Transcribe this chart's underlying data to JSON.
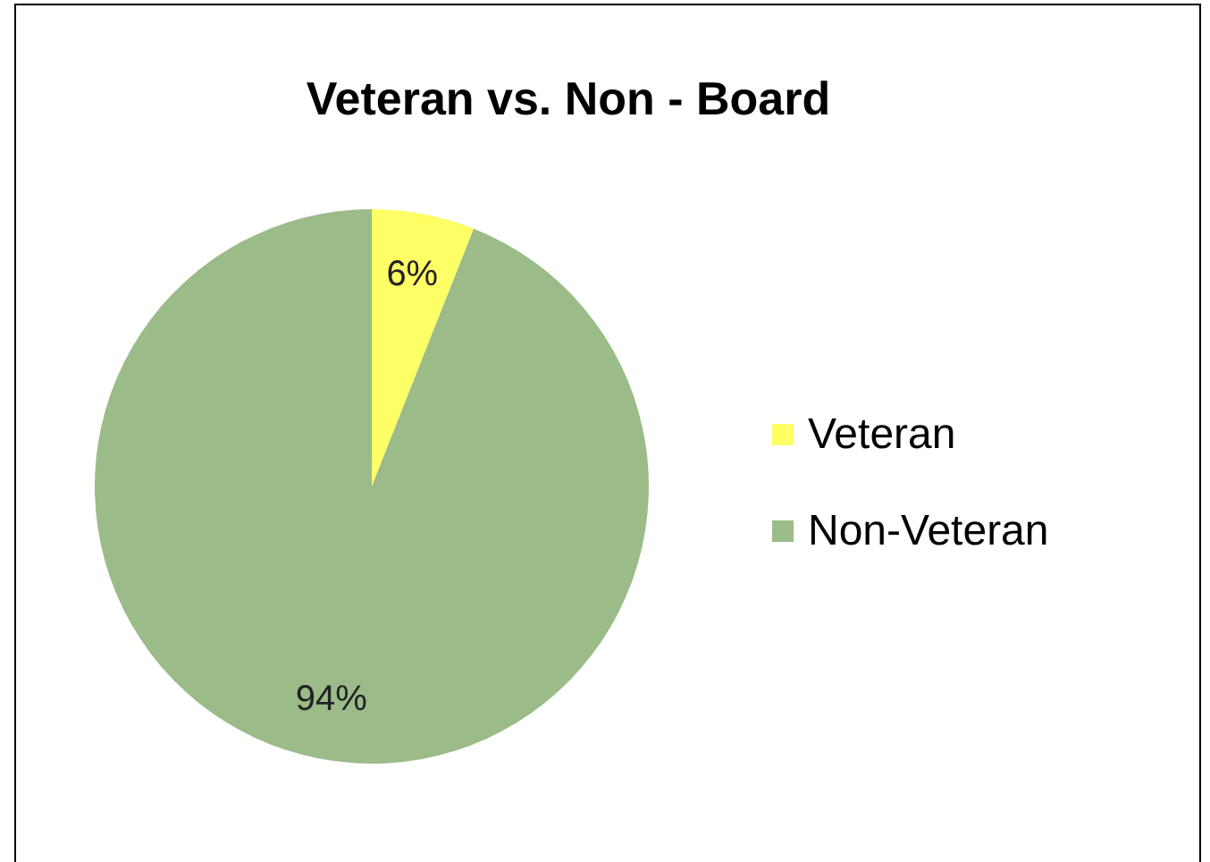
{
  "chart_data": {
    "type": "pie",
    "title": "Veteran vs. Non - Board",
    "categories": [
      "Veteran",
      "Non-Veteran"
    ],
    "values": [
      6,
      94
    ],
    "colors": [
      "#ffff66",
      "#9bbb89"
    ],
    "value_labels": [
      "6%",
      "94%"
    ],
    "legend": "right"
  }
}
